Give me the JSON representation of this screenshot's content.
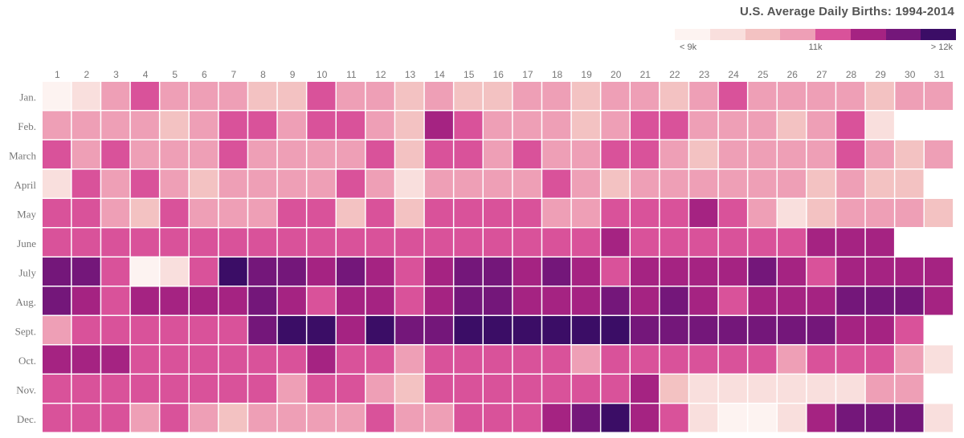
{
  "chart_data": {
    "type": "heatmap",
    "title": "U.S. Average Daily Births: 1994-2014",
    "x_labels": [
      "1",
      "2",
      "3",
      "4",
      "5",
      "6",
      "7",
      "8",
      "9",
      "10",
      "11",
      "12",
      "13",
      "14",
      "15",
      "16",
      "17",
      "18",
      "19",
      "20",
      "21",
      "22",
      "23",
      "24",
      "25",
      "26",
      "27",
      "28",
      "29",
      "30",
      "31"
    ],
    "y_labels": [
      "Jan.",
      "Feb.",
      "March",
      "April",
      "May",
      "June",
      "July",
      "Aug.",
      "Sept.",
      "Oct.",
      "Nov.",
      "Dec."
    ],
    "legend": {
      "position": "top-right",
      "low_label": "< 9k",
      "mid_label": "11k",
      "high_label": "> 12k",
      "colors": [
        "#fdf3f1",
        "#f9dfdd",
        "#f3c2c2",
        "#ee9fb6",
        "#d9529a",
        "#a52382",
        "#74177a",
        "#3b0d66"
      ]
    },
    "color_level_note_values": [
      0,
      1,
      2,
      3,
      4,
      5,
      6,
      7
    ],
    "levels": [
      [
        0,
        1,
        3,
        4,
        3,
        3,
        3,
        2,
        2,
        4,
        3,
        3,
        2,
        3,
        2,
        2,
        3,
        3,
        2,
        3,
        3,
        2,
        3,
        4,
        3,
        3,
        3,
        3,
        2,
        3,
        3
      ],
      [
        3,
        3,
        3,
        3,
        2,
        3,
        4,
        4,
        3,
        4,
        4,
        3,
        2,
        5,
        4,
        3,
        3,
        3,
        2,
        3,
        4,
        4,
        3,
        3,
        3,
        2,
        3,
        4,
        1,
        null,
        null
      ],
      [
        4,
        3,
        4,
        3,
        3,
        3,
        4,
        3,
        3,
        3,
        3,
        4,
        2,
        4,
        4,
        3,
        4,
        3,
        3,
        4,
        4,
        3,
        2,
        3,
        3,
        3,
        3,
        4,
        3,
        2,
        3
      ],
      [
        1,
        4,
        3,
        4,
        3,
        2,
        3,
        3,
        3,
        3,
        4,
        3,
        1,
        3,
        3,
        3,
        3,
        4,
        3,
        2,
        3,
        3,
        3,
        3,
        3,
        3,
        2,
        3,
        2,
        2,
        null
      ],
      [
        4,
        4,
        3,
        2,
        4,
        3,
        3,
        3,
        4,
        4,
        2,
        4,
        2,
        4,
        4,
        4,
        4,
        3,
        3,
        4,
        4,
        4,
        5,
        4,
        3,
        1,
        2,
        3,
        3,
        3,
        2
      ],
      [
        4,
        4,
        4,
        4,
        4,
        4,
        4,
        4,
        4,
        4,
        4,
        4,
        4,
        4,
        4,
        4,
        4,
        4,
        4,
        5,
        4,
        4,
        4,
        4,
        4,
        4,
        5,
        5,
        5,
        null,
        null
      ],
      [
        6,
        6,
        4,
        0,
        1,
        4,
        7,
        6,
        6,
        5,
        6,
        5,
        4,
        5,
        6,
        6,
        5,
        6,
        5,
        4,
        5,
        5,
        5,
        5,
        6,
        5,
        4,
        5,
        5,
        5,
        5
      ],
      [
        6,
        5,
        4,
        5,
        5,
        5,
        5,
        6,
        5,
        4,
        5,
        5,
        4,
        5,
        6,
        6,
        5,
        5,
        5,
        6,
        5,
        6,
        5,
        4,
        5,
        5,
        5,
        6,
        6,
        6,
        5
      ],
      [
        3,
        4,
        4,
        4,
        4,
        4,
        4,
        6,
        7,
        7,
        5,
        7,
        6,
        6,
        7,
        7,
        7,
        7,
        7,
        7,
        6,
        6,
        6,
        6,
        6,
        6,
        6,
        5,
        5,
        4,
        null
      ],
      [
        5,
        5,
        5,
        4,
        4,
        4,
        4,
        4,
        4,
        5,
        4,
        4,
        3,
        4,
        4,
        4,
        4,
        4,
        3,
        4,
        4,
        4,
        4,
        4,
        4,
        3,
        4,
        4,
        4,
        3,
        1
      ],
      [
        4,
        4,
        4,
        4,
        4,
        4,
        4,
        4,
        3,
        4,
        4,
        3,
        2,
        4,
        4,
        4,
        4,
        4,
        4,
        4,
        5,
        2,
        1,
        1,
        1,
        1,
        1,
        1,
        3,
        3,
        null
      ],
      [
        4,
        4,
        4,
        3,
        4,
        3,
        2,
        3,
        3,
        3,
        3,
        4,
        3,
        3,
        4,
        4,
        4,
        5,
        6,
        7,
        5,
        4,
        1,
        0,
        0,
        1,
        5,
        6,
        6,
        6,
        1
      ]
    ]
  }
}
